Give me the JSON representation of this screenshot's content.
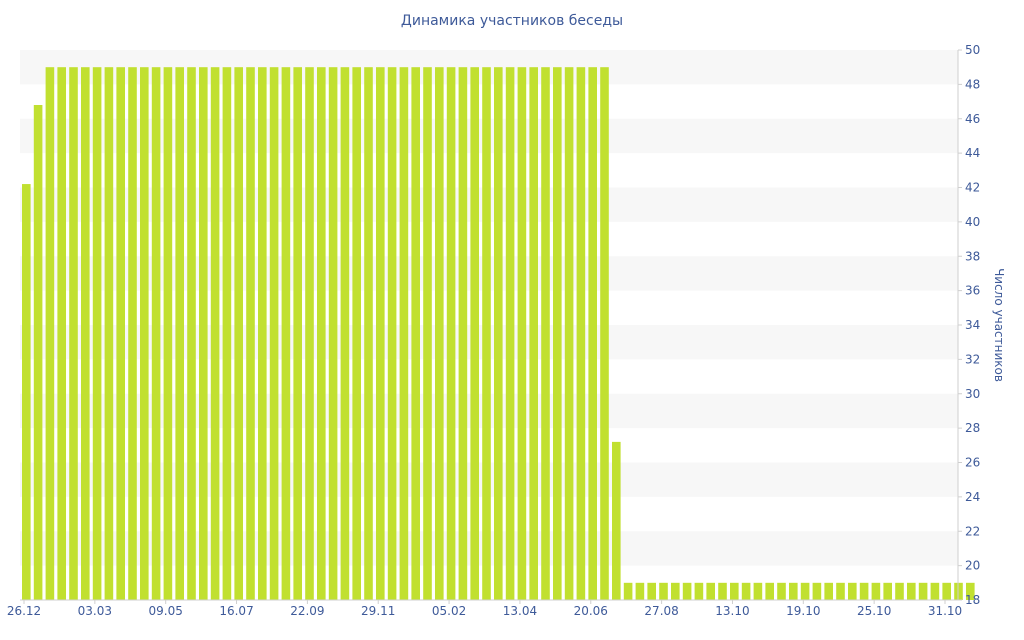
{
  "chart_data": {
    "type": "bar",
    "title": "Динамика участников беседы",
    "ylabel": "Число участников",
    "ylim": [
      18,
      50
    ],
    "y_ticks": [
      18,
      20,
      22,
      24,
      26,
      28,
      30,
      32,
      34,
      36,
      38,
      40,
      42,
      44,
      46,
      48,
      50
    ],
    "x_tick_labels": [
      "26.12",
      "03.03",
      "09.05",
      "16.07",
      "22.09",
      "29.11",
      "05.02",
      "13.04",
      "20.06",
      "27.08",
      "13.10",
      "19.10",
      "25.10",
      "31.10"
    ],
    "grid": "horizontal-bands",
    "axis_position": "right",
    "colors": {
      "bar": "#c1e030",
      "band": "#f7f7f7",
      "text": "#3e5a99",
      "axis": "#cfcfcf"
    },
    "values": [
      42.2,
      46.8,
      49,
      49,
      49,
      49,
      49,
      49,
      49,
      49,
      49,
      49,
      49,
      49,
      49,
      49,
      49,
      49,
      49,
      49,
      49,
      49,
      49,
      49,
      49,
      49,
      49,
      49,
      49,
      49,
      49,
      49,
      49,
      49,
      49,
      49,
      49,
      49,
      49,
      49,
      49,
      49,
      49,
      49,
      49,
      49,
      49,
      49,
      49,
      49,
      27.2,
      19,
      19,
      19,
      19,
      19,
      19,
      19,
      19,
      19,
      19,
      19,
      19,
      19,
      19,
      19,
      19,
      19,
      19,
      19,
      19,
      19,
      19,
      19,
      19,
      19,
      19,
      19,
      19,
      19,
      19
    ]
  }
}
